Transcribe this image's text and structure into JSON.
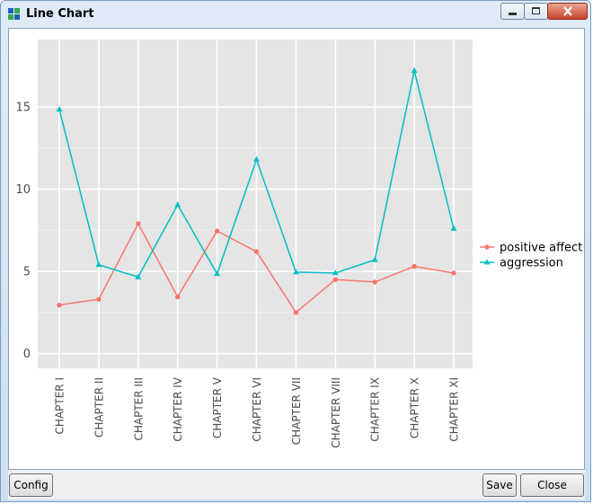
{
  "window": {
    "title": "Line Chart"
  },
  "buttons": {
    "config": "Config",
    "save": "Save",
    "close": "Close"
  },
  "icons": {
    "app": "app-grid-icon",
    "minimize": "minimize-icon",
    "maximize": "maximize-icon",
    "close": "close-icon"
  },
  "chart_data": {
    "type": "line",
    "categories": [
      "CHAPTER I",
      "CHAPTER II",
      "CHAPTER III",
      "CHAPTER IV",
      "CHAPTER V",
      "CHAPTER VI",
      "CHAPTER VII",
      "CHAPTER VIII",
      "CHAPTER IX",
      "CHAPTER X",
      "CHAPTER XI"
    ],
    "series": [
      {
        "name": "positive affect",
        "color": "#f8766d",
        "marker": "circle",
        "values": [
          2.95,
          3.3,
          7.9,
          3.45,
          7.45,
          6.2,
          2.5,
          4.5,
          4.35,
          5.3,
          4.9
        ]
      },
      {
        "name": "aggression",
        "color": "#00bfc4",
        "marker": "triangle",
        "values": [
          14.85,
          5.4,
          4.65,
          9.05,
          4.85,
          11.8,
          4.95,
          4.9,
          5.7,
          17.2,
          7.6
        ]
      }
    ],
    "yticks": [
      0,
      5,
      10,
      15
    ],
    "ylim": [
      -0.9,
      19.1
    ],
    "grid": true,
    "panel_background": "#e5e5e5",
    "legend_position": "right"
  }
}
